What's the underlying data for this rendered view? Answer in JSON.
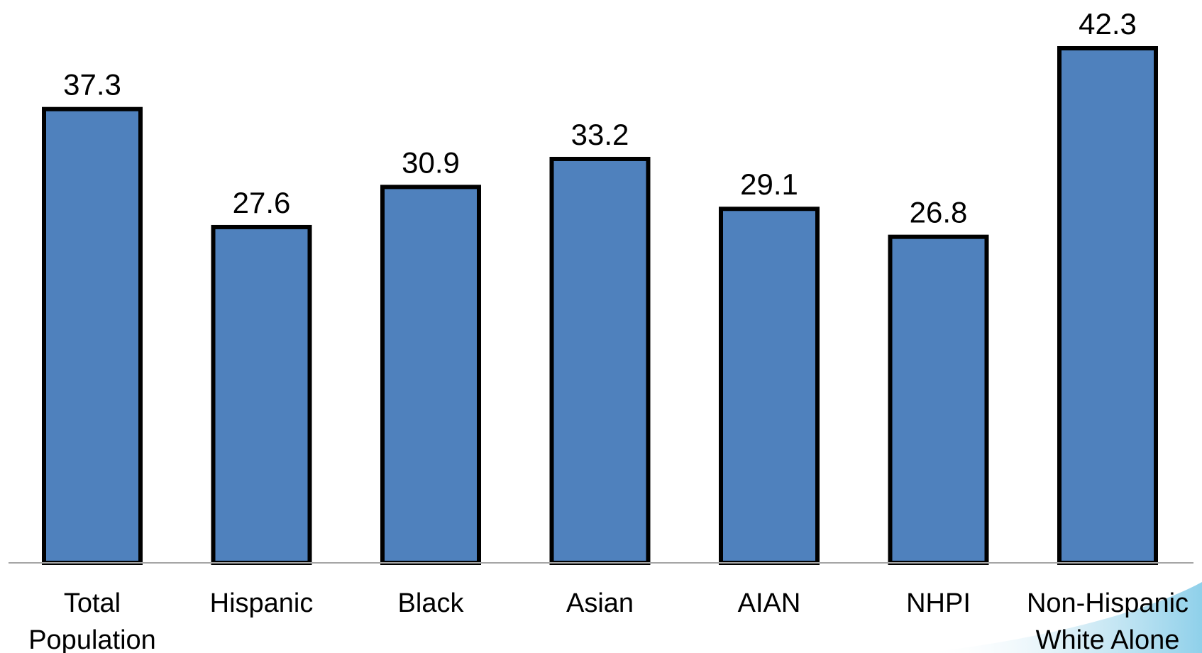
{
  "chart_data": {
    "type": "bar",
    "categories": [
      [
        "Total",
        "Population"
      ],
      [
        "Hispanic"
      ],
      [
        "Black"
      ],
      [
        "Asian"
      ],
      [
        "AIAN"
      ],
      [
        "NHPI"
      ],
      [
        "Non-Hispanic",
        "White Alone"
      ]
    ],
    "values": [
      37.3,
      27.6,
      30.9,
      33.2,
      29.1,
      26.8,
      42.3
    ],
    "value_labels": [
      "37.3",
      "27.6",
      "30.9",
      "33.2",
      "29.1",
      "26.8",
      "42.3"
    ],
    "title": "",
    "xlabel": "",
    "ylabel": "",
    "ylim": [
      0,
      42.3
    ],
    "grid": false,
    "legend": "none",
    "colors": {
      "bar_fill": "#4F81BD",
      "bar_stroke": "#000000",
      "axis": "#A6A6A6",
      "accent_swoosh": "#9ED6EC"
    }
  }
}
